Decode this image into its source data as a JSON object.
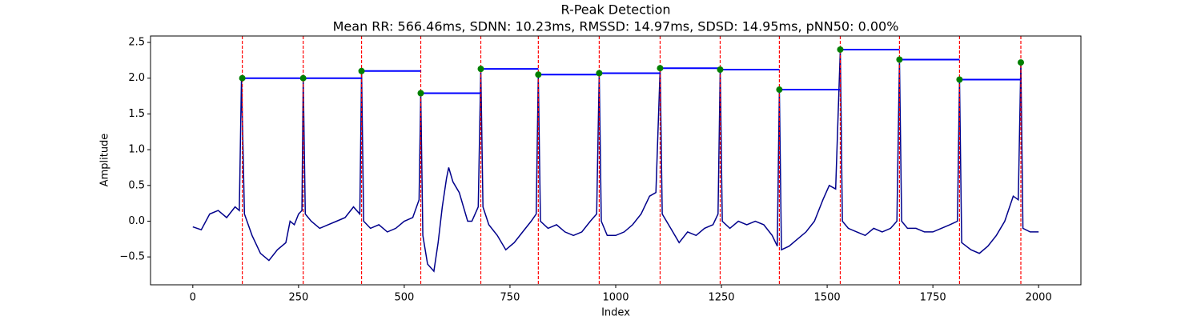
{
  "chart_data": {
    "type": "ecg",
    "title": "R-Peak Detection",
    "subtitle": "Mean RR: 566.46ms, SDNN: 10.23ms, RMSSD: 14.97ms, SDSD: 14.95ms, pNN50: 0.00%",
    "x_label": "Index",
    "y_label": "Amplitude",
    "xlim": [
      -100,
      2100
    ],
    "ylim": [
      -0.89,
      2.59
    ],
    "xticks": [
      0,
      250,
      500,
      750,
      1000,
      1250,
      1500,
      1750,
      2000
    ],
    "yticks": [
      {
        "value": -0.5,
        "label": "−0.5"
      },
      {
        "value": 0,
        "label": "0.0"
      },
      {
        "value": 0.5,
        "label": "0.5"
      },
      {
        "value": 1,
        "label": "1.0"
      },
      {
        "value": 1.5,
        "label": "1.5"
      },
      {
        "value": 2,
        "label": "2.0"
      },
      {
        "value": 2.5,
        "label": "2.5"
      }
    ],
    "signal": {
      "color": "#00008b",
      "x": [
        0,
        20,
        40,
        60,
        80,
        100,
        110,
        115,
        122,
        140,
        160,
        180,
        200,
        220,
        230,
        240,
        250,
        258,
        261,
        266,
        280,
        300,
        320,
        340,
        360,
        380,
        395,
        399,
        404,
        420,
        440,
        460,
        480,
        500,
        520,
        535,
        539,
        544,
        555,
        570,
        580,
        590,
        600,
        605,
        615,
        630,
        650,
        660,
        675,
        681,
        686,
        700,
        720,
        740,
        760,
        780,
        800,
        812,
        817,
        822,
        840,
        860,
        880,
        900,
        920,
        940,
        955,
        961,
        966,
        980,
        1000,
        1020,
        1040,
        1060,
        1080,
        1095,
        1105,
        1110,
        1130,
        1150,
        1170,
        1190,
        1210,
        1230,
        1242,
        1247,
        1252,
        1270,
        1290,
        1310,
        1330,
        1350,
        1370,
        1382,
        1387,
        1392,
        1410,
        1430,
        1450,
        1470,
        1490,
        1505,
        1520,
        1531,
        1536,
        1550,
        1570,
        1590,
        1610,
        1630,
        1650,
        1665,
        1671,
        1676,
        1690,
        1710,
        1730,
        1750,
        1770,
        1790,
        1808,
        1813,
        1818,
        1840,
        1860,
        1880,
        1900,
        1920,
        1940,
        1952,
        1958,
        1963,
        1980,
        2000
      ],
      "values": [
        -0.08,
        -0.12,
        0.1,
        0.15,
        0.05,
        0.2,
        0.15,
        2.0,
        0.1,
        -0.2,
        -0.45,
        -0.55,
        -0.4,
        -0.3,
        0.0,
        -0.05,
        0.1,
        0.15,
        2.0,
        0.1,
        0.0,
        -0.1,
        -0.05,
        0.0,
        0.05,
        0.2,
        0.1,
        2.1,
        0.0,
        -0.1,
        -0.05,
        -0.15,
        -0.1,
        0.0,
        0.05,
        0.3,
        1.79,
        -0.2,
        -0.6,
        -0.7,
        -0.3,
        0.2,
        0.6,
        0.75,
        0.55,
        0.4,
        0.0,
        0.0,
        0.2,
        2.13,
        0.2,
        -0.05,
        -0.2,
        -0.4,
        -0.3,
        -0.15,
        0.0,
        0.1,
        2.05,
        0.0,
        -0.1,
        -0.05,
        -0.15,
        -0.2,
        -0.15,
        0.0,
        0.1,
        2.07,
        0.0,
        -0.2,
        -0.2,
        -0.15,
        -0.05,
        0.1,
        0.35,
        0.4,
        2.14,
        0.1,
        -0.1,
        -0.3,
        -0.15,
        -0.2,
        -0.1,
        -0.05,
        0.1,
        2.12,
        0.0,
        -0.1,
        0.0,
        -0.05,
        0.0,
        -0.05,
        -0.2,
        -0.35,
        1.84,
        -0.4,
        -0.35,
        -0.25,
        -0.15,
        0.0,
        0.3,
        0.5,
        0.45,
        2.4,
        0.0,
        -0.1,
        -0.15,
        -0.2,
        -0.1,
        -0.15,
        -0.1,
        0.0,
        2.26,
        0.0,
        -0.1,
        -0.1,
        -0.15,
        -0.15,
        -0.1,
        -0.05,
        0.0,
        1.98,
        -0.3,
        -0.4,
        -0.45,
        -0.35,
        -0.2,
        0.0,
        0.35,
        0.3,
        2.22,
        -0.1,
        -0.15,
        -0.15
      ]
    },
    "peaks": {
      "color": "#008000",
      "line_color": "#ff0000",
      "level_color": "#0000ff",
      "x": [
        117,
        261,
        399,
        539,
        681,
        817,
        961,
        1105,
        1247,
        1387,
        1531,
        1671,
        1813,
        1958
      ],
      "values": [
        2.0,
        2.0,
        2.1,
        1.79,
        2.13,
        2.05,
        2.07,
        2.14,
        2.12,
        1.84,
        2.4,
        2.26,
        1.98,
        2.22
      ]
    }
  }
}
